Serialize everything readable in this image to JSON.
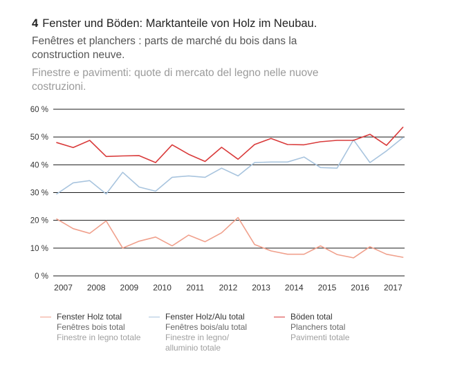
{
  "header": {
    "number": "4",
    "title_de": "Fenster und Böden: Marktanteile von Holz im Neubau.",
    "title_fr": "Fenêtres et planchers : parts de marché du bois dans la construction neuve.",
    "title_it": "Finestre e pavimenti: quote di mercato del legno nelle nuove costruzioni."
  },
  "chart_data": {
    "type": "line",
    "title": "Fenster und Böden: Marktanteile von Holz im Neubau.",
    "xlabel": "",
    "ylabel": "",
    "ylim": [
      0,
      60
    ],
    "yticks": [
      0,
      10,
      20,
      30,
      40,
      50,
      60
    ],
    "ytick_labels": [
      "0 %",
      "10 %",
      "20 %",
      "30 %",
      "40 %",
      "50 %",
      "60 %"
    ],
    "x_range": [
      2006.8,
      2017.35
    ],
    "years": [
      2007,
      2008,
      2009,
      2010,
      2011,
      2012,
      2013,
      2014,
      2015,
      2016,
      2017
    ],
    "xtick_labels": [
      "2007",
      "2008",
      "2009",
      "2010",
      "2011",
      "2012",
      "2013",
      "2014",
      "2015",
      "2016",
      "2017"
    ],
    "grid": true,
    "series": [
      {
        "key": "fenster_holz",
        "name": "Fenster Holz total",
        "color": "#f0a08c",
        "x": [
          2006.8,
          2007.3,
          2007.8,
          2008.3,
          2008.8,
          2009.3,
          2009.8,
          2010.3,
          2010.8,
          2011.3,
          2011.8,
          2012.3,
          2012.8,
          2013.3,
          2013.8,
          2014.3,
          2014.8,
          2015.3,
          2015.8,
          2016.3,
          2016.8,
          2017.3
        ],
        "values": [
          20.5,
          17,
          15.3,
          19.8,
          10,
          12.5,
          14,
          10.8,
          14.7,
          12.3,
          15.5,
          21,
          11.3,
          9,
          7.8,
          7.8,
          10.8,
          7.7,
          6.5,
          10.5,
          7.8,
          6.7
        ]
      },
      {
        "key": "fenster_holz_alu",
        "name": "Fenster Holz/Alu total",
        "color": "#a8c4de",
        "x": [
          2006.8,
          2007.3,
          2007.8,
          2008.3,
          2008.8,
          2009.3,
          2009.8,
          2010.3,
          2010.8,
          2011.3,
          2011.8,
          2012.3,
          2012.8,
          2013.3,
          2013.8,
          2014.3,
          2014.8,
          2015.3,
          2015.8,
          2016.3,
          2016.8,
          2017.3
        ],
        "values": [
          29.5,
          33.5,
          34.3,
          29.5,
          37.3,
          32,
          30.5,
          35.5,
          36,
          35.5,
          38.8,
          36,
          40.8,
          41,
          41,
          42.8,
          39,
          38.8,
          49,
          40.8,
          45,
          49.8
        ]
      },
      {
        "key": "boeden",
        "name": "Böden total",
        "color": "#d93a3a",
        "x": [
          2006.8,
          2007.3,
          2007.8,
          2008.3,
          2008.8,
          2009.3,
          2009.8,
          2010.3,
          2010.8,
          2011.3,
          2011.8,
          2012.3,
          2012.8,
          2013.3,
          2013.8,
          2014.3,
          2014.8,
          2015.3,
          2015.8,
          2016.3,
          2016.8,
          2017.3
        ],
        "values": [
          48,
          46.2,
          48.8,
          43,
          43.2,
          43.3,
          40.8,
          47.2,
          43.8,
          41.2,
          46.3,
          42,
          47.3,
          49.5,
          47.3,
          47.2,
          48.3,
          48.8,
          48.8,
          51,
          47,
          53.5
        ]
      }
    ]
  },
  "legend": [
    {
      "color": "#f0a08c",
      "de": "Fenster Holz total",
      "fr": "Fenêtres bois total",
      "it": "Finestre in legno totale"
    },
    {
      "color": "#a8c4de",
      "de": "Fenster Holz/Alu total",
      "fr": "Fenêtres bois/alu total",
      "it": "Finestre in legno/ alluminio totale"
    },
    {
      "color": "#d93a3a",
      "de": "Böden total",
      "fr": "Planchers total",
      "it": "Pavimenti totale"
    }
  ]
}
